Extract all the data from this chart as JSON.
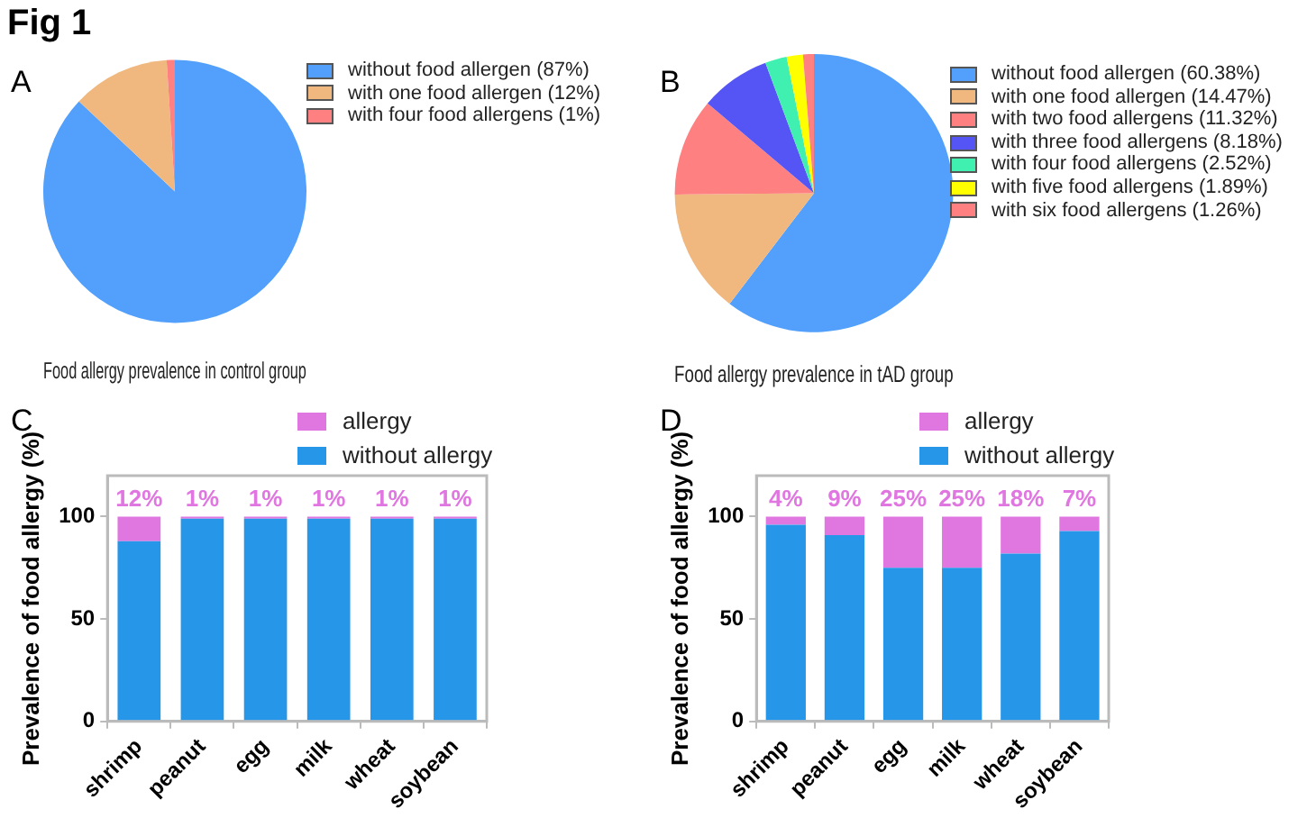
{
  "chart_data": [
    {
      "type": "pie",
      "subtitle": "A",
      "title": "Food allergy prevalence in control group",
      "annotations": [
        "Fig 1"
      ],
      "legend": "top right",
      "categories": [
        "without food allergen (87%)",
        "with one food allergen (12%)",
        "with four food allergens (1%)"
      ],
      "values": [
        87,
        12,
        1
      ],
      "colors": [
        "#52a0fb",
        "#f0b87e",
        "#ff8080"
      ]
    },
    {
      "type": "pie",
      "subtitle": "B",
      "title": "Food allergy prevalence in tAD group",
      "legend": "top right",
      "categories": [
        "without food allergen (60.38%)",
        "with one food allergen (14.47%)",
        "with two food allergens (11.32%)",
        "with three food allergens (8.18%)",
        "with four food allergens (2.52%)",
        "with five food allergens (1.89%)",
        "with six food allergens (1.26%)"
      ],
      "values": [
        60.38,
        14.47,
        11.32,
        8.18,
        2.52,
        1.89,
        1.26
      ],
      "colors": [
        "#52a0fb",
        "#f0b87e",
        "#ff8080",
        "#5555f5",
        "#40f0b0",
        "#ffff00",
        "#ff8080"
      ]
    },
    {
      "type": "bar",
      "subtitle": "C",
      "ylabel": "Prevalence of food allergy (%)",
      "stacked": true,
      "legend": "top",
      "grid": false,
      "categories": [
        "shrimp",
        "peanut",
        "egg",
        "milk",
        "wheat",
        "soybean"
      ],
      "ylim": [
        0,
        120
      ],
      "yticks": [
        0,
        50,
        100
      ],
      "series": [
        {
          "name": "without allergy",
          "color": "#2696e8",
          "values": [
            88,
            99,
            99,
            99,
            99,
            99
          ]
        },
        {
          "name": "allergy",
          "color": "#e076e0",
          "values": [
            12,
            1,
            1,
            1,
            1,
            1
          ],
          "value_labels": [
            "12%",
            "1%",
            "1%",
            "1%",
            "1%",
            "1%"
          ]
        }
      ]
    },
    {
      "type": "bar",
      "subtitle": "D",
      "ylabel": "Prevalence of food allergy (%)",
      "stacked": true,
      "legend": "top",
      "grid": false,
      "categories": [
        "shrimp",
        "peanut",
        "egg",
        "milk",
        "wheat",
        "soybean"
      ],
      "ylim": [
        0,
        120
      ],
      "yticks": [
        0,
        50,
        100
      ],
      "series": [
        {
          "name": "without allergy",
          "color": "#2696e8",
          "values": [
            96,
            91,
            75,
            75,
            82,
            93
          ]
        },
        {
          "name": "allergy",
          "color": "#e076e0",
          "values": [
            4,
            9,
            25,
            25,
            18,
            7
          ],
          "value_labels": [
            "4%",
            "9%",
            "25%",
            "25%",
            "18%",
            "7%"
          ]
        }
      ]
    }
  ]
}
